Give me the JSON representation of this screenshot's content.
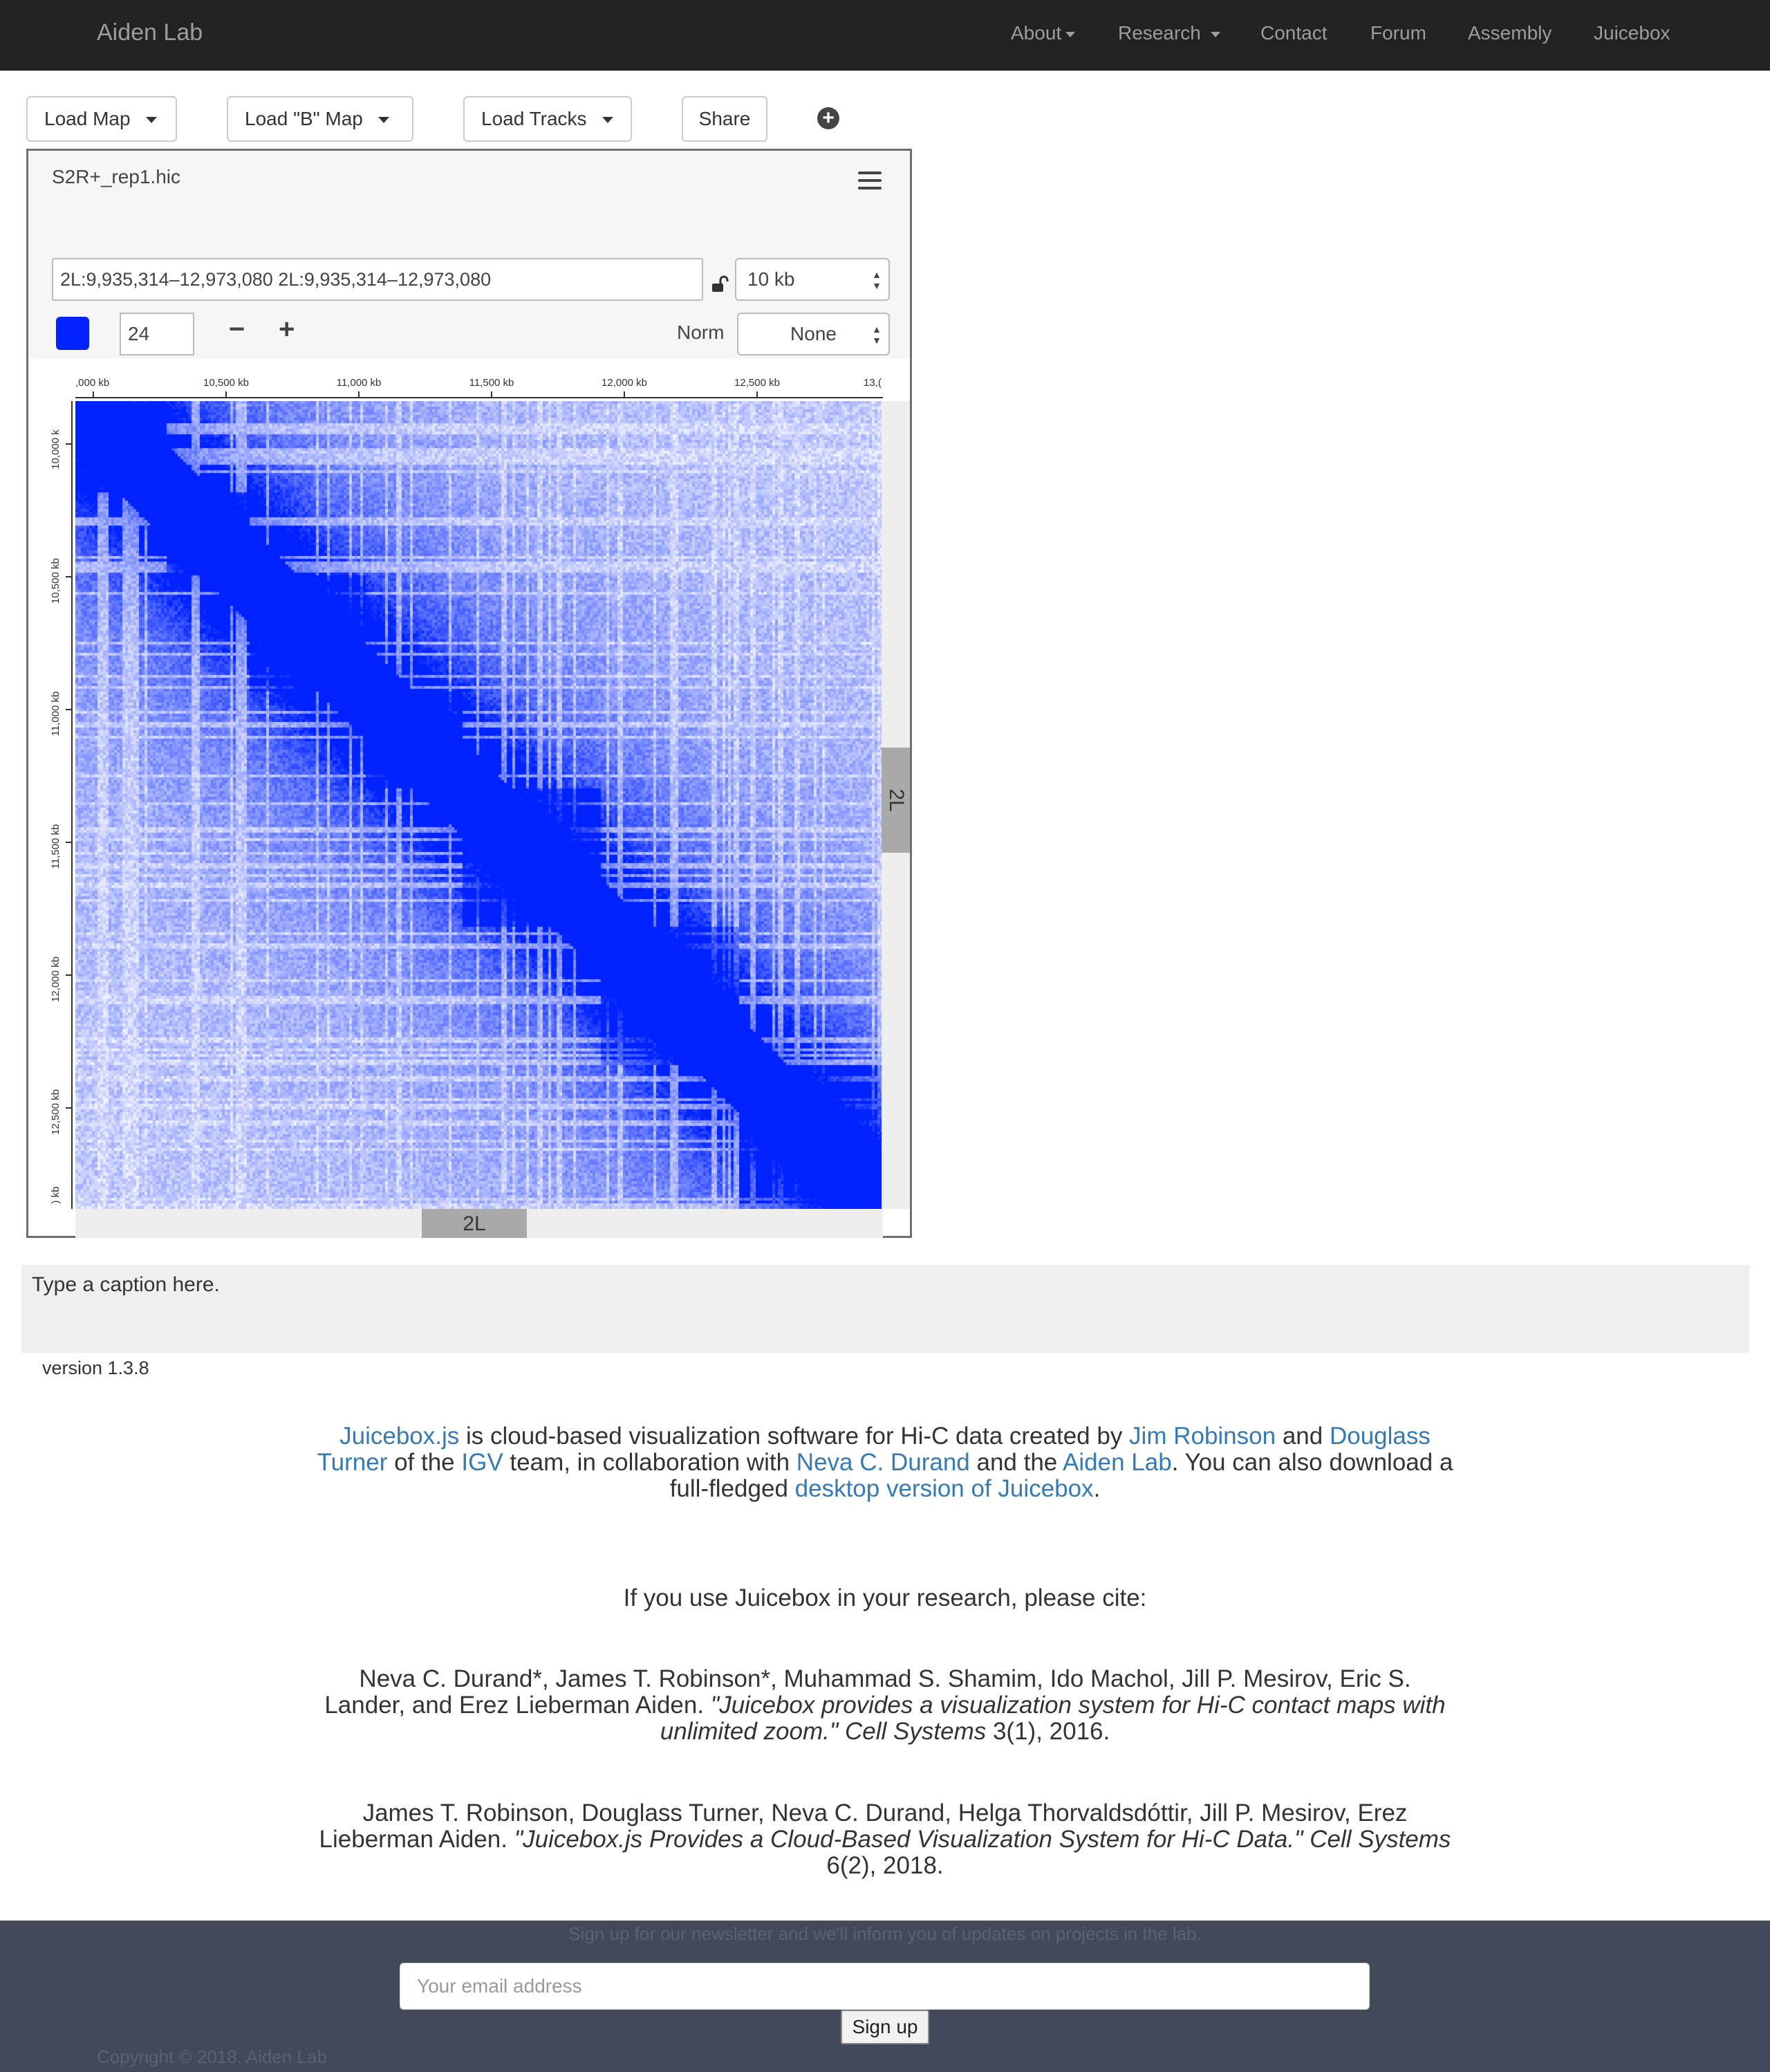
{
  "navbar": {
    "brand": "Aiden Lab",
    "items": [
      "About",
      "Research",
      "Contact",
      "Forum",
      "Assembly",
      "Juicebox"
    ]
  },
  "toolbar": {
    "load_map": "Load Map",
    "load_b_map": "Load \"B\" Map",
    "load_tracks": "Load Tracks",
    "share": "Share"
  },
  "browser": {
    "map_name": "S2R+_rep1.hic",
    "locus": "2L:9,935,314–12,973,080 2L:9,935,314–12,973,080",
    "resolution": "10 kb",
    "color_threshold": "24",
    "norm_label": "Norm",
    "norm_value": "None",
    "chromosome_x": "2L",
    "chromosome_y": "2L",
    "x_ticks": [
      ")",
      ",000 kb",
      "10,500 kb",
      "11,000 kb",
      "11,500 kb",
      "12,000 kb",
      "12,500 kb",
      "13,("
    ],
    "x_tick_labels": [
      ",000 kb",
      "10,500 kb",
      "11,000 kb",
      "11,500 kb",
      "12,000 kb",
      "12,500 kb",
      "13,("
    ],
    "y_tick_labels": [
      "10,000 k",
      "10,500 kb",
      "11,000 kb",
      "11,500 kb",
      "12,000 kb",
      "12,500 kb",
      ") kb"
    ],
    "heat_color": "#0022ff"
  },
  "caption": "Type a caption here.",
  "version": "version 1.3.8",
  "about": {
    "juicebox_js": "Juicebox.js",
    "t1": " is cloud-based visualization software for Hi-C data created by ",
    "jim": "Jim Robinson",
    "t2": " and ",
    "douglass": "Douglass Turner",
    "t3": " of the ",
    "igv": "IGV",
    "t4": " team, in collaboration with ",
    "neva": "Neva C. Durand",
    "t5": " and the ",
    "aiden": "Aiden Lab",
    "t6": ". You can also download a full-fledged ",
    "desktop": "desktop version of Juicebox",
    "t7": "."
  },
  "cite_heading": "If you use Juicebox in your research, please cite:",
  "citation1": {
    "authors": "Neva C. Durand*, James T. Robinson*, Muhammad S. Shamim, Ido Machol, Jill P. Mesirov, Eric S. Lander, and Erez Lieberman Aiden. ",
    "title": "\"Juicebox provides a visualization system for Hi-C contact maps with unlimited zoom.\"",
    "journal": " Cell Systems",
    "volume": " 3(1), 2016."
  },
  "citation2": {
    "authors": "James T. Robinson, Douglass Turner, Neva C. Durand, Helga Thorvaldsdóttir, Jill P. Mesirov, Erez Lieberman Aiden. ",
    "title": "\"Juicebox.js Provides a Cloud-Based Visualization System for Hi-C Data.\"",
    "journal": " Cell Systems",
    "volume": " 6(2), 2018."
  },
  "footer": {
    "note": "Sign up for our newsletter and we'll inform you of updates on projects in the lab.",
    "email_placeholder": "Your email address",
    "signup": "Sign up",
    "copyright": "Copyright © 2018. Aiden Lab"
  }
}
